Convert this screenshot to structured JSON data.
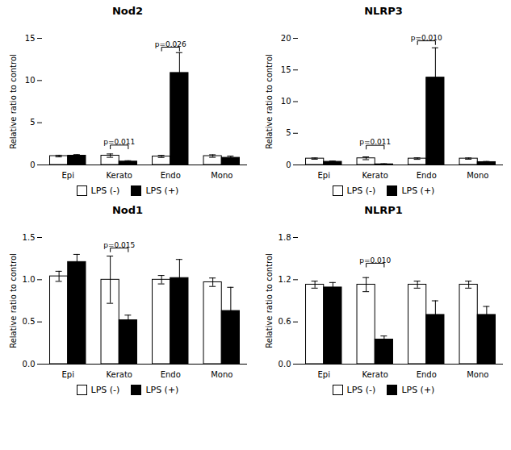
{
  "chart_data": [
    {
      "type": "bar",
      "title": "Nod2",
      "ylabel": "Relative ratio to control",
      "categories": [
        "Epi",
        "Kerato",
        "Endo",
        "Mono"
      ],
      "series": [
        {
          "name": "LPS (-)",
          "color": "white",
          "values": [
            1.05,
            1.1,
            1.0,
            1.05
          ],
          "sem": [
            0.1,
            0.2,
            0.12,
            0.15
          ]
        },
        {
          "name": "LPS (+)",
          "color": "black",
          "values": [
            1.1,
            0.4,
            10.9,
            0.85
          ],
          "sem": [
            0.12,
            0.1,
            2.4,
            0.2
          ]
        }
      ],
      "ylim": [
        0,
        15
      ],
      "yticks": [
        0,
        5,
        10,
        15
      ],
      "grid": false,
      "legend": "bottom",
      "annotations": [
        {
          "category": "Kerato",
          "text": "p=0.011",
          "y": 1.9
        },
        {
          "category": "Endo",
          "text": "p=0.026",
          "y": 13.5
        }
      ]
    },
    {
      "type": "bar",
      "title": "NLRP3",
      "ylabel": "Relative ratio to control",
      "categories": [
        "Epi",
        "Kerato",
        "Endo",
        "Mono"
      ],
      "series": [
        {
          "name": "LPS (-)",
          "color": "white",
          "values": [
            1.0,
            1.05,
            1.0,
            1.0
          ],
          "sem": [
            0.1,
            0.22,
            0.12,
            0.1
          ]
        },
        {
          "name": "LPS (+)",
          "color": "black",
          "values": [
            0.5,
            0.1,
            13.8,
            0.45
          ],
          "sem": [
            0.12,
            0.08,
            4.7,
            0.1
          ]
        }
      ],
      "ylim": [
        0,
        20
      ],
      "yticks": [
        0,
        5,
        10,
        15,
        20
      ],
      "grid": false,
      "legend": "bottom",
      "annotations": [
        {
          "category": "Kerato",
          "text": "p=0.011",
          "y": 2.5
        },
        {
          "category": "Endo",
          "text": "p=0.010",
          "y": 19.0
        }
      ]
    },
    {
      "type": "bar",
      "title": "Nod1",
      "ylabel": "Relative ratio to control",
      "categories": [
        "Epi",
        "Kerato",
        "Endo",
        "Mono"
      ],
      "series": [
        {
          "name": "LPS (-)",
          "color": "white",
          "values": [
            1.04,
            1.0,
            1.0,
            0.97
          ],
          "sem": [
            0.06,
            0.28,
            0.05,
            0.05
          ]
        },
        {
          "name": "LPS (+)",
          "color": "black",
          "values": [
            1.21,
            0.52,
            1.02,
            0.63
          ],
          "sem": [
            0.09,
            0.06,
            0.22,
            0.28
          ]
        }
      ],
      "ylim": [
        0,
        1.5
      ],
      "yticks": [
        {
          "value": 0,
          "label": "0.0"
        },
        0.5,
        {
          "value": 1,
          "label": "1.0"
        },
        1.5
      ],
      "grid": false,
      "legend": "bottom",
      "annotations": [
        {
          "category": "Kerato",
          "text": "p=0.015",
          "y": 1.33
        }
      ]
    },
    {
      "type": "bar",
      "title": "NLRP1",
      "ylabel": "Relative ratio to control",
      "categories": [
        "Epi",
        "Kerato",
        "Endo",
        "Mono"
      ],
      "series": [
        {
          "name": "LPS (-)",
          "color": "white",
          "values": [
            1.13,
            1.13,
            1.13,
            1.13
          ],
          "sem": [
            0.05,
            0.1,
            0.05,
            0.05
          ]
        },
        {
          "name": "LPS (+)",
          "color": "black",
          "values": [
            1.09,
            0.35,
            0.7,
            0.7
          ],
          "sem": [
            0.07,
            0.05,
            0.2,
            0.12
          ]
        }
      ],
      "ylim": [
        0,
        1.8
      ],
      "yticks": [
        {
          "value": 0,
          "label": "0.0"
        },
        0.6,
        1.2,
        1.8
      ],
      "grid": false,
      "legend": "bottom",
      "annotations": [
        {
          "category": "Kerato",
          "text": "p=0.010",
          "y": 1.38
        }
      ]
    }
  ]
}
